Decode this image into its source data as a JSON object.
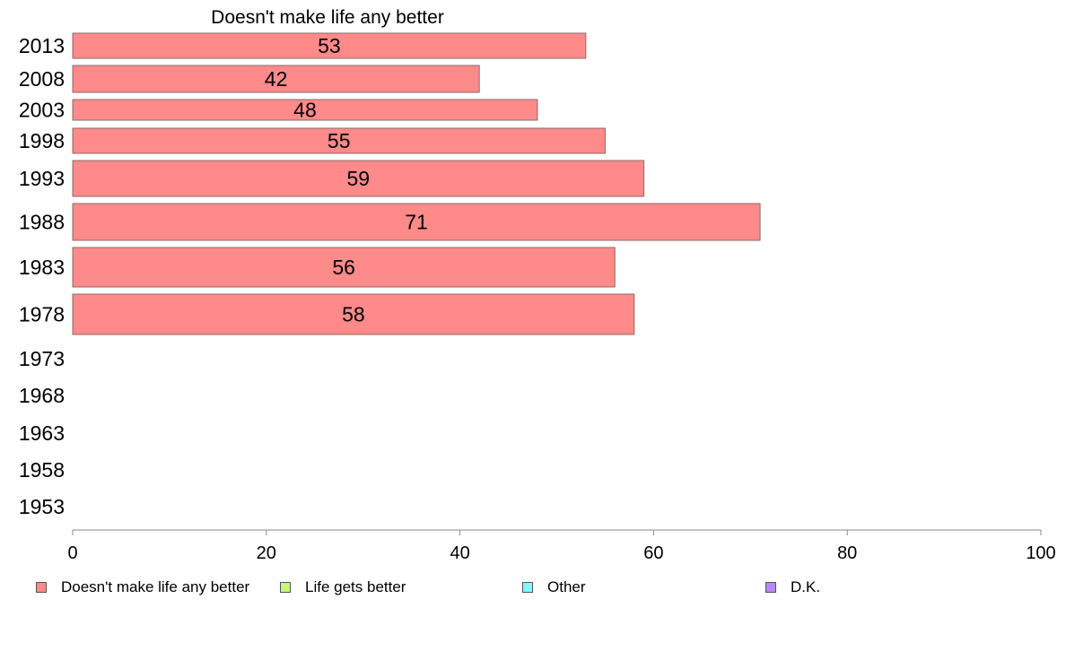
{
  "chart_data": {
    "type": "bar",
    "orientation": "horizontal",
    "title": "Doesn't make life any better",
    "categories": [
      "2013",
      "2008",
      "2003",
      "1998",
      "1993",
      "1988",
      "1983",
      "1978",
      "1973",
      "1968",
      "1963",
      "1958",
      "1953"
    ],
    "series": [
      {
        "name": "Doesn't make life any better",
        "color": "#ff8a8a",
        "values": [
          53,
          42,
          48,
          55,
          59,
          71,
          56,
          58,
          null,
          null,
          null,
          null,
          null
        ],
        "labels": [
          "53",
          "42",
          "48",
          "55",
          "59",
          "71",
          "56",
          "58",
          "",
          "",
          "",
          "",
          ""
        ]
      }
    ],
    "xlim": [
      0,
      100
    ],
    "xticks": [
      "0",
      "20",
      "40",
      "60",
      "80",
      "100"
    ],
    "grid": false,
    "legend_position": "bottom"
  },
  "legend": {
    "items": [
      {
        "label": "Doesn't make life any better",
        "color": "#ff8a8a"
      },
      {
        "label": "Life gets better",
        "color": "#c6f57a"
      },
      {
        "label": "Other",
        "color": "#80fafa"
      },
      {
        "label": "D.K.",
        "color": "#b98af5"
      }
    ]
  }
}
